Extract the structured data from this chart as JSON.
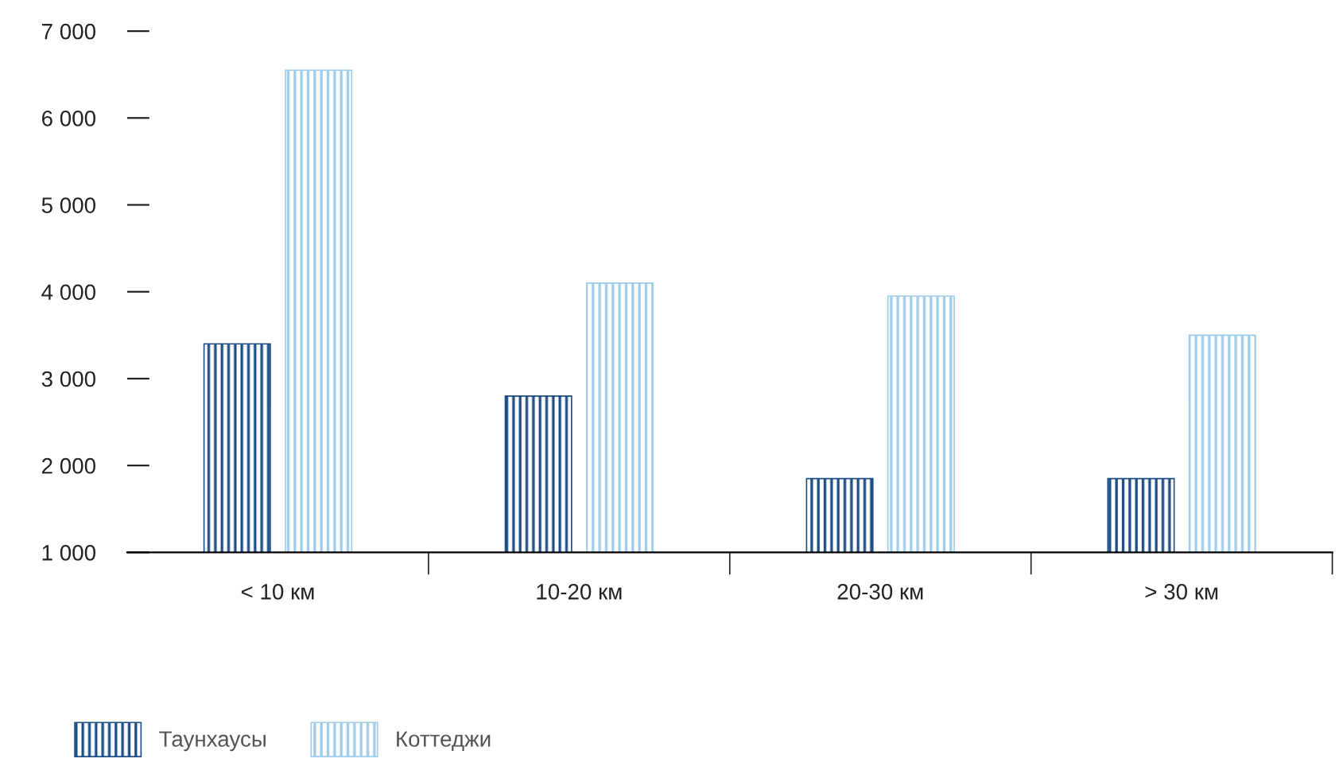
{
  "chart_data": {
    "type": "bar",
    "categories": [
      "< 10 км",
      "10-20 км",
      "20-30 км",
      "> 30 км"
    ],
    "series": [
      {
        "name": "Таунхаусы",
        "color": "#1d4f86",
        "values": [
          3400,
          2800,
          1850,
          1850
        ]
      },
      {
        "name": "Коттеджи",
        "color": "#9fcdec",
        "values": [
          6550,
          4100,
          3950,
          3500
        ]
      }
    ],
    "ylim": [
      1000,
      7000
    ],
    "yticks": [
      {
        "value": 1000,
        "label": "1 000"
      },
      {
        "value": 2000,
        "label": "2 000"
      },
      {
        "value": 3000,
        "label": "3 000"
      },
      {
        "value": 4000,
        "label": "4 000"
      },
      {
        "value": 5000,
        "label": "5 000"
      },
      {
        "value": 6000,
        "label": "6 000"
      },
      {
        "value": 7000,
        "label": "7 000"
      }
    ],
    "grid": false,
    "legend": "bottom left"
  }
}
